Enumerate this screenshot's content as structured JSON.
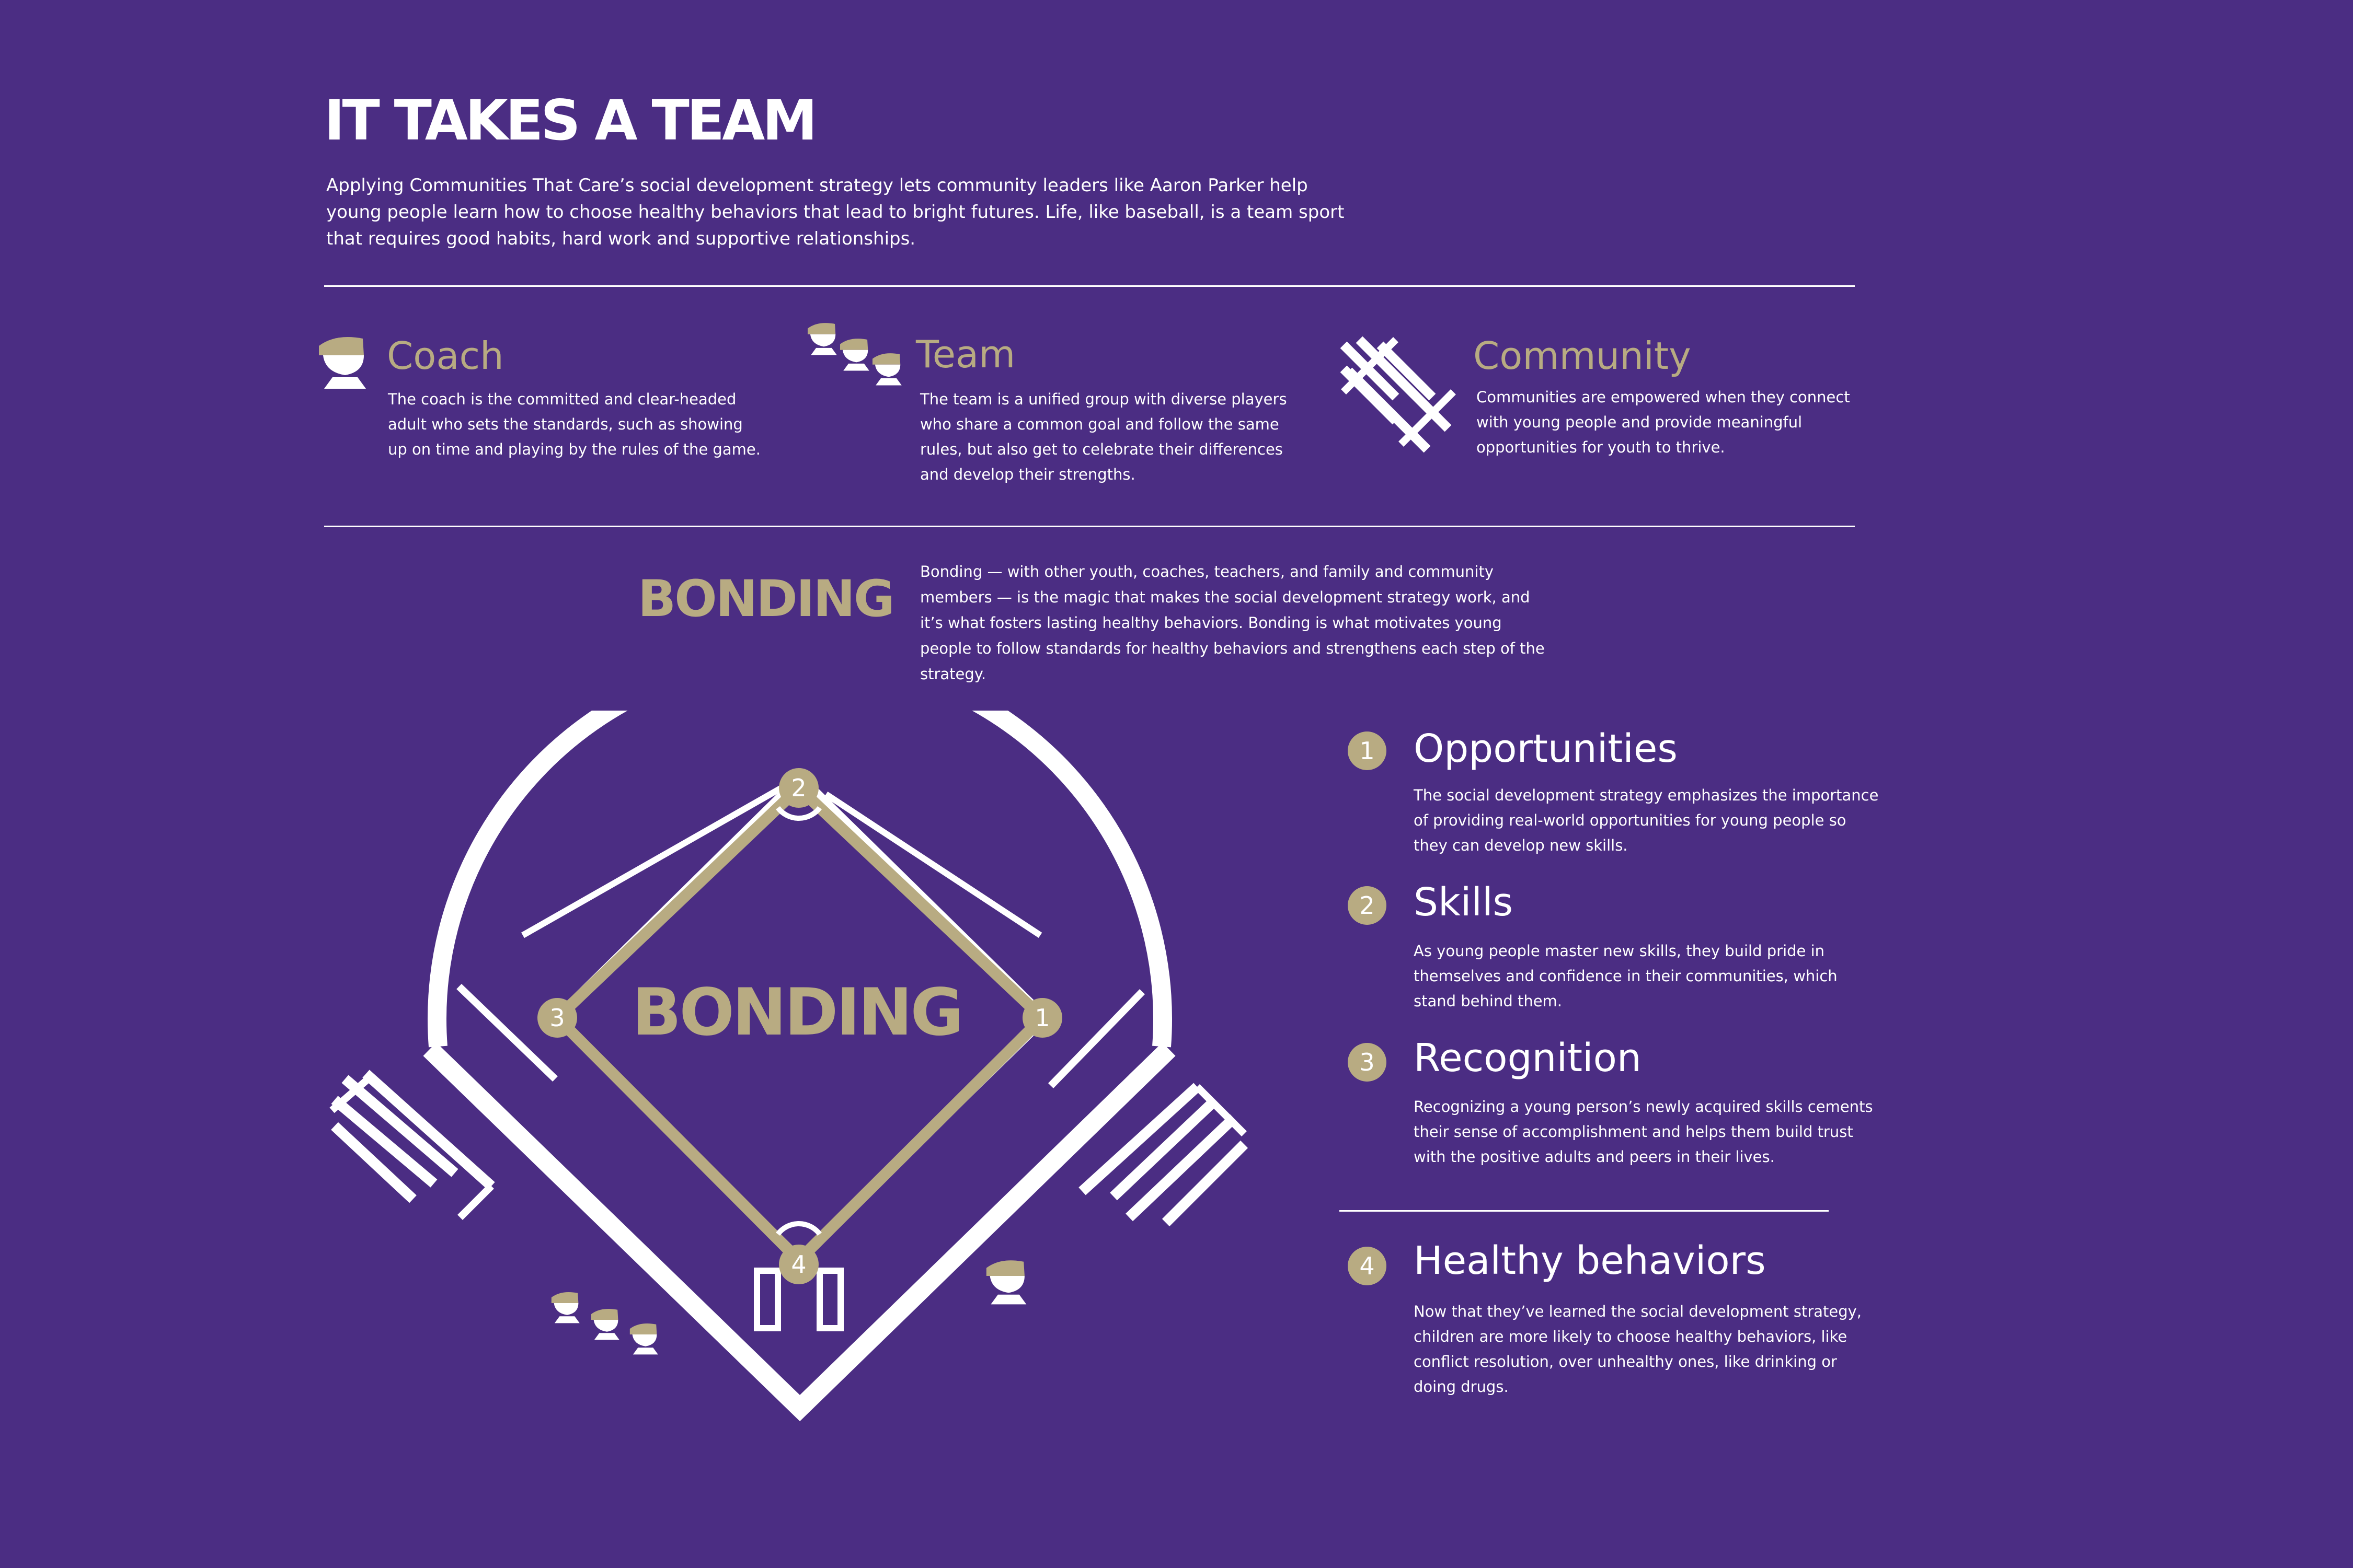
{
  "header": {
    "title": "IT TAKES A TEAM",
    "intro": "Applying Communities That Care’s social development strategy lets community leaders like Aaron Parker help young people learn how to choose healthy behaviors that lead to bright futures. Life, like baseball, is a team sport that requires good habits, hard work and supportive relationships."
  },
  "roles": [
    {
      "title": "Coach",
      "icon": "coach-icon",
      "text": "The coach is the committed and clear-headed adult who sets the standards, such as showing up on time and playing by the rules of the game."
    },
    {
      "title": "Team",
      "icon": "team-icon",
      "text": "The team is a unified group with diverse players who share a common goal and follow the same rules, but also get to celebrate their differences and develop their strengths."
    },
    {
      "title": "Community",
      "icon": "bleachers-icon",
      "text": "Communities are empowered when they connect with young people and provide meaningful opportunities for youth to thrive."
    }
  ],
  "bonding": {
    "heading": "BONDING",
    "text": "Bonding — with other youth, coaches, teachers, and family and community members — is the magic that makes the social development strategy work, and it’s what fosters lasting healthy behaviors. Bonding is what motivates young people to follow standards for healthy behaviors and strengthens each step of the strategy."
  },
  "field": {
    "center_label": "BONDING",
    "bases": [
      "1",
      "2",
      "3",
      "4"
    ]
  },
  "steps": [
    {
      "num": "1",
      "title": "Opportunities",
      "text": "The social development strategy emphasizes the importance of providing real-world opportunities for young people so they can develop new skills."
    },
    {
      "num": "2",
      "title": "Skills",
      "text": "As young people master new skills, they build pride in themselves and confidence in their communities, which stand behind them."
    },
    {
      "num": "3",
      "title": "Recognition",
      "text": "Recognizing a young person’s newly acquired skills cements their sense of accomplishment and helps them build trust with the positive adults and peers in their lives."
    },
    {
      "num": "4",
      "title": "Healthy behaviors",
      "text": "Now that they’ve learned the social development strategy, children are more likely to choose healthy behaviors, like conflict resolution, over unhealthy ones, like drinking or doing drugs."
    }
  ],
  "colors": {
    "background": "#4b2d83",
    "gold": "#b8ab82",
    "white": "#ffffff"
  }
}
